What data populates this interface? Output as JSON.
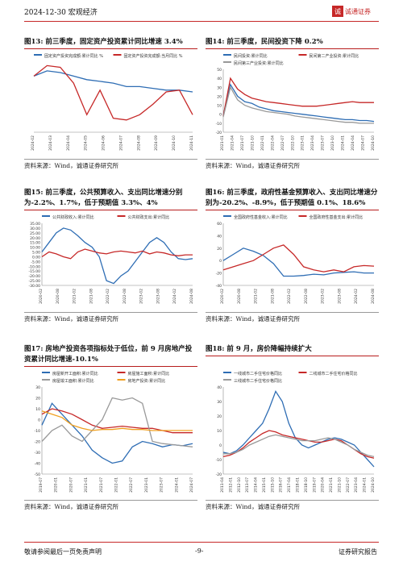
{
  "header": {
    "date_section": "2024-12-30  宏观经济",
    "logo_mark": "诚",
    "logo_text": "诚通证券"
  },
  "footer": {
    "left": "敬请参阅最后一页免责声明",
    "center": "-9-",
    "right": "证券研究报告"
  },
  "source_text": "资料来源：Wind，诚通证券研究所",
  "colors": {
    "blue": "#2e6db4",
    "red": "#c62828",
    "gray": "#999999",
    "orange": "#f0a020",
    "accent": "#c62828"
  },
  "figures": [
    {
      "id": "fig13",
      "title": "图13:  前三季度，固定资产投资累计同比增速 3.4%",
      "chart_data": {
        "type": "line",
        "series": [
          {
            "name": "固定资产投资完成额:累计同比 %",
            "color": "blue",
            "values": [
              4.2,
              4.5,
              4.4,
              4.2,
              4.0,
              3.9,
              3.8,
              3.6,
              3.6,
              3.5,
              3.4,
              3.4,
              3.3
            ]
          },
          {
            "name": "固定资产投资完成额:当月同比 %",
            "color": "red",
            "values": [
              4.2,
              4.8,
              4.7,
              3.8,
              2.0,
              3.4,
              1.8,
              1.7,
              2.0,
              2.6,
              3.3,
              3.4,
              2.0
            ]
          }
        ],
        "xticks": [
          "2024-02",
          "2024-03",
          "2024-04",
          "2024-05",
          "2024-06",
          "2024-07",
          "2024-08",
          "2024-09",
          "2024-10",
          "2024-11"
        ],
        "ylim": [
          1,
          5
        ]
      }
    },
    {
      "id": "fig14",
      "title": "图14:  前三季度，民间投资下降 0.2%",
      "chart_data": {
        "type": "line",
        "series": [
          {
            "name": "民间投资:累计同比",
            "color": "blue",
            "values": [
              -1,
              33,
              20,
              14,
              12,
              8,
              6,
              4,
              3,
              2,
              1,
              0,
              -1,
              -2,
              -3,
              -4,
              -5,
              -6,
              -6,
              -7,
              -7,
              -8
            ]
          },
          {
            "name": "民间第二产业投资:累计同比",
            "color": "red",
            "values": [
              -2,
              40,
              28,
              22,
              18,
              16,
              14,
              13,
              12,
              11,
              10,
              9,
              9,
              9,
              10,
              11,
              12,
              13,
              14,
              13,
              13,
              13
            ]
          },
          {
            "name": "民间第三产业投资:累计同比",
            "color": "gray",
            "values": [
              -3,
              30,
              16,
              10,
              7,
              5,
              3,
              2,
              1,
              0,
              -2,
              -3,
              -4,
              -5,
              -6,
              -7,
              -8,
              -9,
              -9,
              -10,
              -10,
              -10
            ]
          }
        ],
        "xticks": [
          "2021-01",
          "2021-04",
          "2021-07",
          "2021-10",
          "2022-01",
          "2022-04",
          "2022-07",
          "2022-10",
          "2023-01",
          "2023-04",
          "2023-07",
          "2023-10",
          "2024-01",
          "2024-04",
          "2024-07",
          "2024-10"
        ],
        "yticks": [
          "50",
          "40",
          "30",
          "20",
          "10",
          "0",
          "-10",
          "-20"
        ],
        "ylim": [
          -20,
          50
        ]
      }
    },
    {
      "id": "fig15",
      "title": "图15:  前三季度，公共预算收入、支出同比增速分别为-2.2%、1.7%，低于预期值 3.3%、4%",
      "chart_data": {
        "type": "line",
        "series": [
          {
            "name": "公共财政收入:累计同比",
            "color": "blue",
            "values": [
              5,
              15,
              25,
              30,
              28,
              22,
              15,
              10,
              0,
              -25,
              -28,
              -20,
              -15,
              -5,
              5,
              15,
              20,
              15,
              5,
              -2,
              -3,
              -2
            ]
          },
          {
            "name": "公共财政支出:累计同比",
            "color": "red",
            "values": [
              0,
              5,
              3,
              0,
              -2,
              5,
              8,
              6,
              4,
              3,
              5,
              6,
              5,
              4,
              6,
              3,
              5,
              4,
              2,
              1,
              2,
              2
            ]
          }
        ],
        "xticks": [
          "2020-02",
          "2020-08",
          "2021-02",
          "2021-08",
          "2022-02",
          "2022-08",
          "2023-02",
          "2023-08",
          "2024-02",
          "2024-08"
        ],
        "yticks": [
          "35.00",
          "30.00",
          "25.00",
          "20.00",
          "15.00",
          "10.00",
          "5.00",
          "0.00",
          "-5.00",
          "-10.00",
          "-15.00",
          "-20.00",
          "-25.00",
          "-30.00"
        ],
        "ylim": [
          -30,
          35
        ]
      }
    },
    {
      "id": "fig16",
      "title": "图16:  前三季度，政府性基金预算收入、支出同比增速分别为-20.2%、-8.9%，低于预期值 0.1%、18.6%",
      "chart_data": {
        "type": "line",
        "series": [
          {
            "name": "全国政府性基金收入:累计同比",
            "color": "blue",
            "values": [
              0,
              10,
              20,
              15,
              8,
              -5,
              -25,
              -25,
              -24,
              -22,
              -23,
              -20,
              -19,
              -18,
              -20,
              -20
            ]
          },
          {
            "name": "全国政府性基金支出:累计同比",
            "color": "red",
            "values": [
              -15,
              -10,
              -5,
              0,
              10,
              20,
              25,
              10,
              -10,
              -15,
              -18,
              -15,
              -18,
              -10,
              -8,
              -9
            ]
          }
        ],
        "xticks": [
          "2020-02",
          "2020-08",
          "2021-02",
          "2021-08",
          "2022-02",
          "2022-08",
          "2023-02",
          "2023-08",
          "2024-02",
          "2024-08"
        ],
        "yticks": [
          "60",
          "40",
          "20",
          "0",
          "-20",
          "-40"
        ],
        "ylim": [
          -40,
          60
        ]
      }
    },
    {
      "id": "fig17",
      "title": "图17:  房地产投资各项指标处于低位，前 9 月房地产投资累计同比增速-10.1%",
      "chart_data": {
        "type": "line",
        "series": [
          {
            "name": "房屋新开工面积:累计同比",
            "color": "blue",
            "values": [
              -5,
              15,
              5,
              -5,
              -15,
              -28,
              -35,
              -40,
              -38,
              -25,
              -20,
              -22,
              -25,
              -23,
              -24,
              -22
            ]
          },
          {
            "name": "房屋施工面积:累计同比",
            "color": "red",
            "values": [
              5,
              10,
              8,
              5,
              0,
              -5,
              -8,
              -7,
              -6,
              -7,
              -8,
              -8,
              -10,
              -12,
              -12,
              -12
            ]
          },
          {
            "name": "房屋竣工面积:累计同比",
            "color": "gray",
            "values": [
              -20,
              -10,
              -5,
              -15,
              -20,
              -10,
              0,
              20,
              18,
              20,
              15,
              -20,
              -22,
              -23,
              -24,
              -25
            ]
          },
          {
            "name": "房地产投资:累计同比",
            "color": "orange",
            "values": [
              8,
              5,
              2,
              -5,
              -8,
              -10,
              -9,
              -9,
              -8,
              -9,
              -9,
              -10,
              -10,
              -10,
              -10,
              -10
            ]
          }
        ],
        "xticks": [
          "2019-07",
          "2020-01",
          "2020-07",
          "2021-01",
          "2021-07",
          "2022-01",
          "2022-07",
          "2023-01",
          "2023-07",
          "2024-01",
          "2024-07"
        ],
        "yticks": [
          "30",
          "20",
          "10",
          "0",
          "-10",
          "-20",
          "-30",
          "-40",
          "-50"
        ],
        "ylim": [
          -50,
          30
        ]
      }
    },
    {
      "id": "fig18",
      "title": "图18:  前 9 月，房价降幅持续扩大",
      "chart_data": {
        "type": "line",
        "series": [
          {
            "name": "一线城市二手住宅价格同比",
            "color": "blue",
            "values": [
              -5,
              -6,
              -4,
              0,
              5,
              10,
              15,
              25,
              37,
              30,
              15,
              5,
              0,
              -2,
              0,
              2,
              4,
              5,
              4,
              2,
              0,
              -5,
              -10,
              -15
            ]
          },
          {
            "name": "二线城市二手住宅价格同比",
            "color": "red",
            "values": [
              -8,
              -7,
              -5,
              -2,
              2,
              5,
              8,
              10,
              9,
              7,
              6,
              5,
              4,
              3,
              2,
              2,
              3,
              4,
              3,
              0,
              -3,
              -6,
              -8,
              -9
            ]
          },
          {
            "name": "三线城市二手住宅价格同比",
            "color": "gray",
            "values": [
              -6,
              -6,
              -5,
              -3,
              0,
              2,
              4,
              6,
              7,
              6,
              5,
              4,
              3,
              3,
              3,
              4,
              5,
              4,
              2,
              0,
              -3,
              -5,
              -7,
              -8
            ]
          }
        ],
        "xticks": [
          "2011-04",
          "2012-01",
          "2012-10",
          "2013-07",
          "2014-04",
          "2015-01",
          "2015-10",
          "2016-07",
          "2017-04",
          "2018-01",
          "2018-10",
          "2019-07",
          "2020-04",
          "2021-01",
          "2021-10",
          "2022-07",
          "2023-04",
          "2024-01",
          "2024-10"
        ],
        "yticks": [
          "40",
          "30",
          "20",
          "10",
          "0",
          "-10",
          "-20"
        ],
        "ylim": [
          -20,
          40
        ]
      }
    }
  ]
}
